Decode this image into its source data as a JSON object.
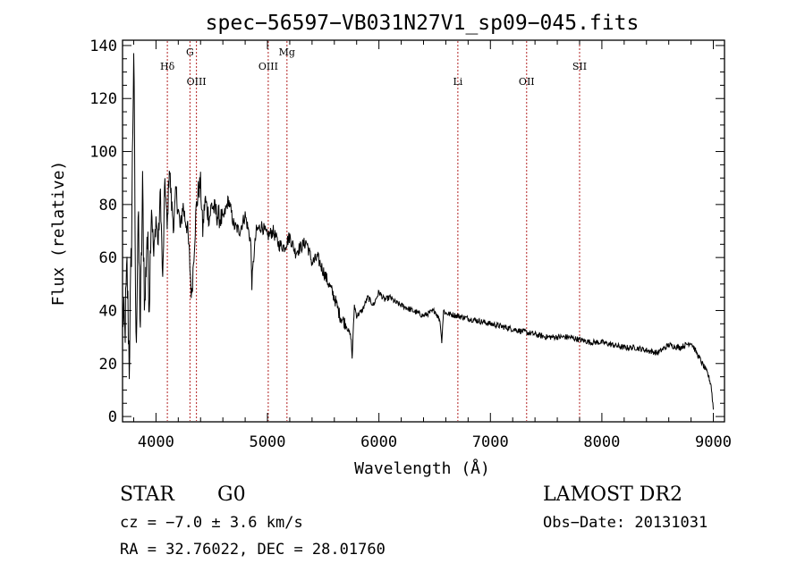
{
  "chart_data": {
    "type": "line",
    "title": "spec−56597−VB031N27V1_sp09−045.fits",
    "xlabel": "Wavelength (Å)",
    "ylabel": "Flux (relative)",
    "xlim": [
      3700,
      9100
    ],
    "ylim": [
      -2,
      142
    ],
    "x_ticks": [
      4000,
      5000,
      6000,
      7000,
      8000,
      9000
    ],
    "y_ticks": [
      0,
      20,
      40,
      60,
      80,
      100,
      120,
      140
    ],
    "grid": false,
    "line_color": "#000000",
    "marker_color": "#b22222",
    "series": [
      {
        "name": "flux",
        "x": [
          3700,
          3720,
          3740,
          3760,
          3780,
          3800,
          3820,
          3840,
          3860,
          3880,
          3900,
          3920,
          3940,
          3960,
          3980,
          4000,
          4020,
          4040,
          4060,
          4080,
          4100,
          4120,
          4140,
          4160,
          4180,
          4200,
          4220,
          4240,
          4260,
          4280,
          4300,
          4320,
          4340,
          4360,
          4380,
          4400,
          4420,
          4440,
          4460,
          4480,
          4500,
          4550,
          4600,
          4650,
          4700,
          4750,
          4800,
          4850,
          4860,
          4880,
          4900,
          4950,
          5000,
          5050,
          5100,
          5150,
          5200,
          5250,
          5300,
          5350,
          5400,
          5450,
          5500,
          5550,
          5600,
          5650,
          5700,
          5750,
          5760,
          5780,
          5800,
          5850,
          5900,
          5950,
          6000,
          6050,
          6100,
          6150,
          6200,
          6300,
          6400,
          6500,
          6550,
          6563,
          6580,
          6600,
          6700,
          6800,
          6900,
          7000,
          7100,
          7200,
          7300,
          7400,
          7500,
          7600,
          7700,
          7800,
          7900,
          8000,
          8100,
          8200,
          8300,
          8400,
          8500,
          8600,
          8700,
          8800,
          8850,
          8900,
          8950,
          8980,
          9000
        ],
        "values": [
          40,
          30,
          55,
          20,
          65,
          140,
          25,
          75,
          35,
          85,
          40,
          70,
          45,
          80,
          60,
          75,
          65,
          85,
          50,
          90,
          70,
          95,
          80,
          72,
          85,
          78,
          70,
          80,
          75,
          72,
          60,
          45,
          62,
          78,
          85,
          88,
          70,
          82,
          78,
          75,
          80,
          76,
          74,
          82,
          72,
          70,
          76,
          66,
          50,
          62,
          70,
          72,
          68,
          70,
          65,
          64,
          68,
          62,
          64,
          66,
          58,
          60,
          55,
          50,
          45,
          38,
          35,
          30,
          22,
          42,
          38,
          40,
          45,
          42,
          47,
          44,
          45,
          43,
          42,
          40,
          38,
          40,
          36,
          28,
          40,
          39,
          38,
          37,
          36,
          35,
          34,
          33,
          32,
          31,
          30,
          30,
          30,
          29,
          28,
          28,
          27,
          26,
          26,
          25,
          24,
          27,
          26,
          28,
          24,
          20,
          16,
          12,
          3
        ]
      }
    ],
    "line_markers": [
      {
        "label": "Hδ",
        "x": 4102,
        "row": "mid"
      },
      {
        "label": "G",
        "x": 4305,
        "row": "top"
      },
      {
        "label": "OIII",
        "x": 4363,
        "row": "low"
      },
      {
        "label": "OIII",
        "x": 5007,
        "row": "mid"
      },
      {
        "label": "Mg",
        "x": 5175,
        "row": "top"
      },
      {
        "label": "Li",
        "x": 6708,
        "row": "low"
      },
      {
        "label": "OII",
        "x": 7325,
        "row": "low"
      },
      {
        "label": "SII",
        "x": 7800,
        "row": "mid"
      }
    ],
    "annotations": {
      "object_class": "STAR",
      "subclass": "G0",
      "survey": "LAMOST DR2",
      "redshift": "cz = −7.0 ± 3.6 km/s",
      "obs_date": "Obs−Date: 20131031",
      "coords": "RA =  32.76022, DEC =  28.01760"
    }
  }
}
